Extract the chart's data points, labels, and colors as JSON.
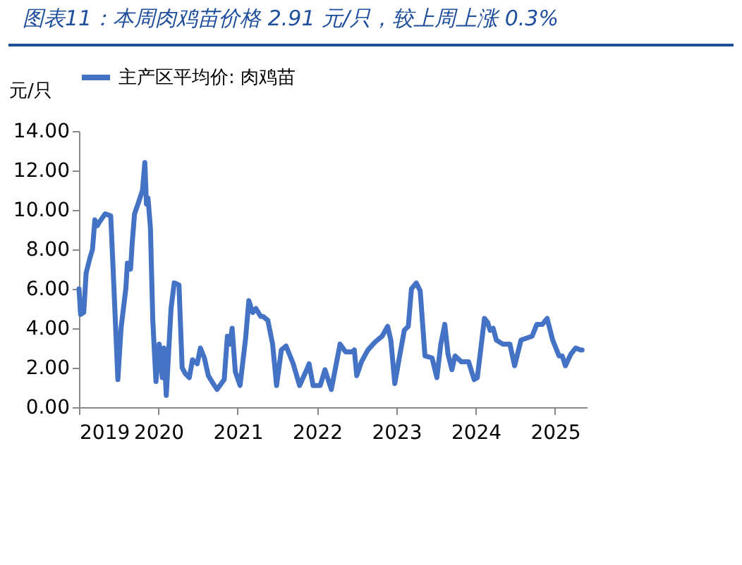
{
  "chart_data": {
    "type": "line",
    "title": "图表11：本周肉鸡苗价格 2.91 元/只，较上周上涨 0.3%",
    "ylabel": "元/只",
    "legend": "top",
    "grid": false,
    "xlim": [
      2019,
      2025.4
    ],
    "xticks": [
      2019,
      2020,
      2021,
      2022,
      2023,
      2024,
      2025
    ],
    "ylim": [
      0,
      14
    ],
    "yticks": [
      {
        "value": 0,
        "label": "0.00"
      },
      {
        "value": 2,
        "label": "2.00"
      },
      {
        "value": 4,
        "label": "4.00"
      },
      {
        "value": 6,
        "label": "6.00"
      },
      {
        "value": 8,
        "label": "8.00"
      },
      {
        "value": 10,
        "label": "10.00"
      },
      {
        "value": 12,
        "label": "12.00"
      },
      {
        "value": 14,
        "label": "14.00"
      }
    ],
    "x": [
      2019.0,
      2019.02,
      2019.06,
      2019.09,
      2019.14,
      2019.17,
      2019.2,
      2019.23,
      2019.26,
      2019.33,
      2019.4,
      2019.43,
      2019.49,
      2019.53,
      2019.59,
      2019.61,
      2019.65,
      2019.67,
      2019.7,
      2019.76,
      2019.8,
      2019.83,
      2019.85,
      2019.87,
      2019.9,
      2019.93,
      2019.97,
      2020.01,
      2020.05,
      2020.07,
      2020.1,
      2020.16,
      2020.2,
      2020.26,
      2020.3,
      2020.34,
      2020.39,
      2020.43,
      2020.49,
      2020.53,
      2020.58,
      2020.63,
      2020.69,
      2020.74,
      2020.83,
      2020.87,
      2020.9,
      2020.93,
      2020.97,
      2021.03,
      2021.1,
      2021.14,
      2021.19,
      2021.23,
      2021.29,
      2021.32,
      2021.38,
      2021.44,
      2021.49,
      2021.55,
      2021.61,
      2021.7,
      2021.78,
      2021.87,
      2021.9,
      2021.95,
      2022.04,
      2022.1,
      2022.18,
      2022.29,
      2022.36,
      2022.44,
      2022.47,
      2022.5,
      2022.56,
      2022.64,
      2022.73,
      2022.82,
      2022.89,
      2022.93,
      2022.98,
      2023.05,
      2023.1,
      2023.15,
      2023.19,
      2023.25,
      2023.3,
      2023.36,
      2023.45,
      2023.51,
      2023.56,
      2023.61,
      2023.65,
      2023.7,
      2023.74,
      2023.82,
      2023.91,
      2023.98,
      2024.02,
      2024.11,
      2024.15,
      2024.18,
      2024.22,
      2024.26,
      2024.34,
      2024.43,
      2024.49,
      2024.57,
      2024.64,
      2024.71,
      2024.77,
      2024.84,
      2024.9,
      2024.97,
      2025.05,
      2025.09,
      2025.13,
      2025.2,
      2025.26,
      2025.32,
      2025.34
    ],
    "series": [
      {
        "name": "主产区平均价: 肉鸡苗",
        "color": "#4472c4",
        "values": [
          6.0,
          4.7,
          4.8,
          6.8,
          7.6,
          8.0,
          9.5,
          9.2,
          9.4,
          9.8,
          9.7,
          7.0,
          1.4,
          4.0,
          6.0,
          7.3,
          7.0,
          8.3,
          9.8,
          10.5,
          11.0,
          12.4,
          10.3,
          10.6,
          9.1,
          4.4,
          1.3,
          3.2,
          1.5,
          3.0,
          0.6,
          5.0,
          6.3,
          6.2,
          2.0,
          1.7,
          1.5,
          2.4,
          2.2,
          3.0,
          2.5,
          1.6,
          1.2,
          0.9,
          1.4,
          3.6,
          3.2,
          4.0,
          1.8,
          1.1,
          3.5,
          5.4,
          4.8,
          5.0,
          4.6,
          4.6,
          4.4,
          3.2,
          1.1,
          2.9,
          3.1,
          2.2,
          1.1,
          1.9,
          2.2,
          1.1,
          1.1,
          1.9,
          0.9,
          3.2,
          2.8,
          2.8,
          2.9,
          1.6,
          2.3,
          2.9,
          3.3,
          3.6,
          4.1,
          3.4,
          1.2,
          2.8,
          3.9,
          4.1,
          6.0,
          6.3,
          5.9,
          2.6,
          2.5,
          1.5,
          3.2,
          4.2,
          2.7,
          1.9,
          2.6,
          2.3,
          2.3,
          1.4,
          1.5,
          4.5,
          4.3,
          3.9,
          4.0,
          3.4,
          3.2,
          3.2,
          2.1,
          3.4,
          3.5,
          3.6,
          4.2,
          4.2,
          4.5,
          3.4,
          2.6,
          2.6,
          2.1,
          2.7,
          3.0,
          2.9,
          2.9
        ]
      }
    ]
  }
}
